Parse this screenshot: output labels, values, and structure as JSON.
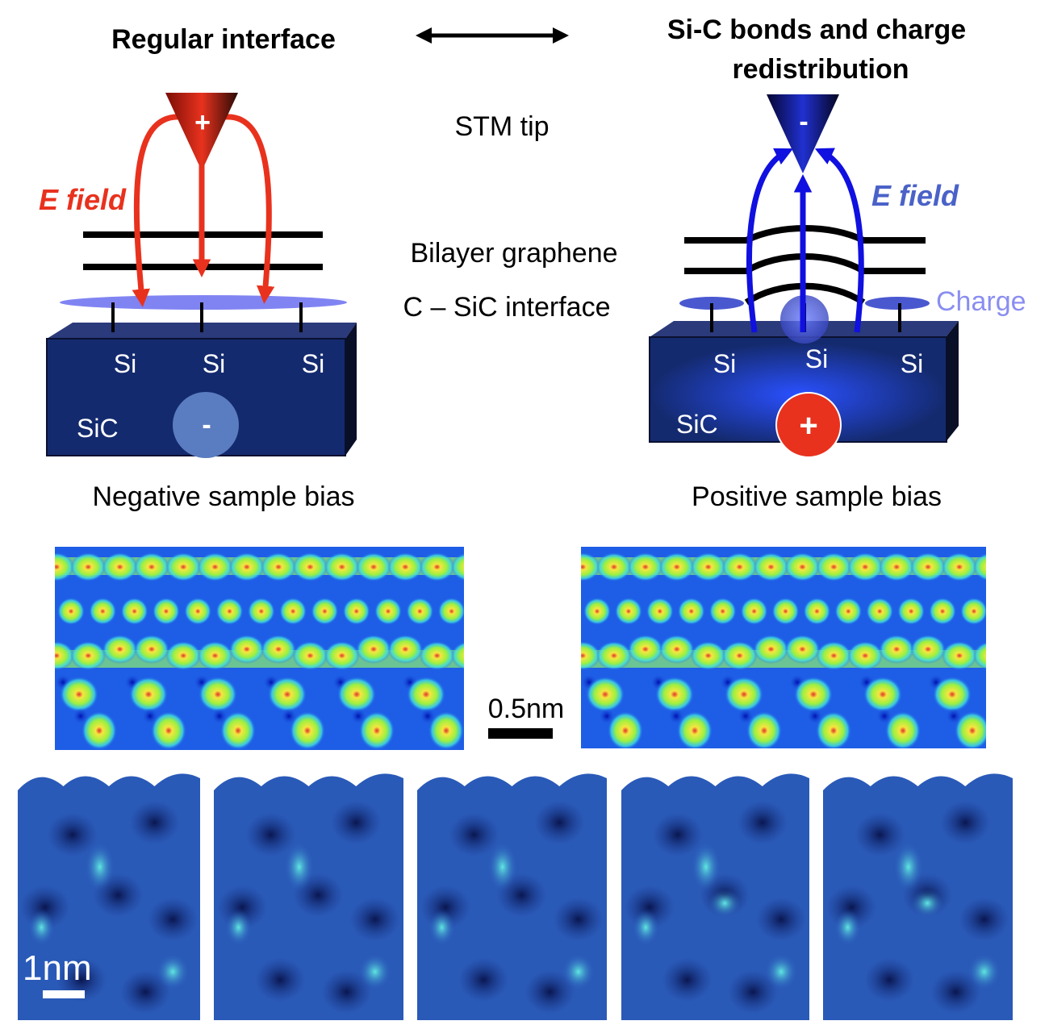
{
  "header": {
    "left_title": "Regular interface",
    "right_title_line1": "Si-C bonds and charge",
    "right_title_line2": "redistribution"
  },
  "labels": {
    "stm_tip": "STM tip",
    "bilayer": "Bilayer graphene",
    "interface": "C – SiC interface",
    "e_field": "E field",
    "charge": "Charge",
    "si": "Si",
    "sic": "SiC",
    "plus": "+",
    "minus": "-",
    "negative_bias": "Negative sample bias",
    "positive_bias": "Positive sample bias",
    "scale_05": "0.5nm",
    "scale_1": "1nm"
  },
  "colors": {
    "red": "#e8321e",
    "blue": "#1010e0",
    "substrate": "#142a6e",
    "charge_label": "#8a8ef0",
    "efield_right": "#4a62c8"
  }
}
